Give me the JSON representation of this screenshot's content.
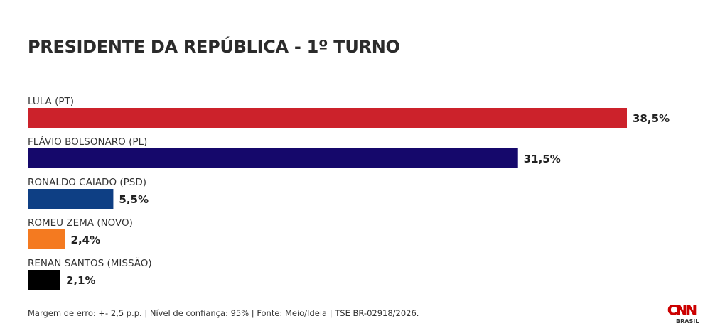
{
  "title": "PRESIDENTE DA REPÚBLICA - 1º TURNO",
  "footnote": "Margem de erro: +- 2,5 p.p. | Nível de confiança: 95% | Fonte: Meio/Ideia | TSE BR-02918/2026.",
  "logo": {
    "main_text": "CNN",
    "sub_text": "BRASIL",
    "color": "#cc0000"
  },
  "chart_data": {
    "type": "bar",
    "orientation": "horizontal",
    "title": "PRESIDENTE DA REPÚBLICA - 1º TURNO",
    "categories": [
      "LULA (PT)",
      "FLÁVIO BOLSONARO (PL)",
      "RONALDO CAIADO (PSD)",
      "ROMEU ZEMA (NOVO)",
      "RENAN SANTOS (MISSÃO)"
    ],
    "values": [
      38.5,
      31.5,
      5.5,
      2.4,
      2.1
    ],
    "value_labels": [
      "38,5%",
      "31,5%",
      "5,5%",
      "2,4%",
      "2,1%"
    ],
    "colors": [
      "#cc222b",
      "#15086b",
      "#0e3f84",
      "#f47a20",
      "#000000"
    ],
    "xlim": [
      0,
      38.5
    ],
    "grid": false,
    "legend": "none"
  }
}
